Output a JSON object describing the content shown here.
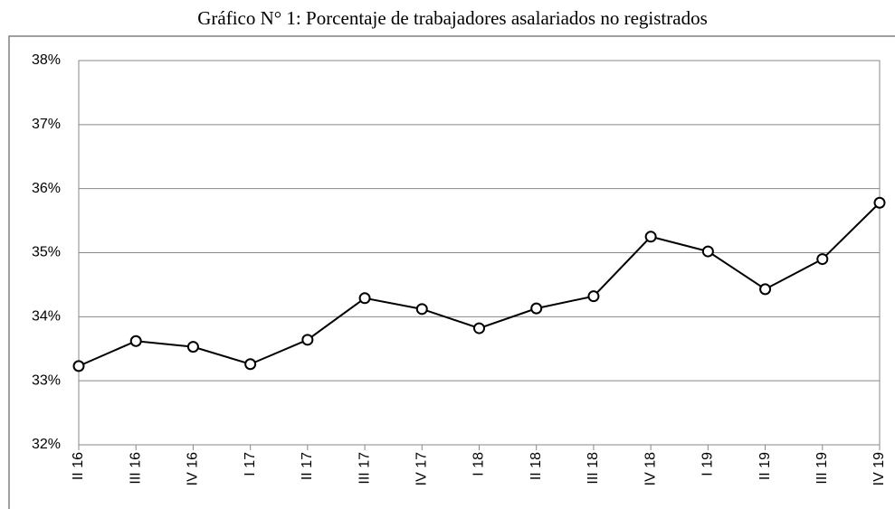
{
  "chart_data": {
    "type": "line",
    "title": "Gráfico N° 1: Porcentaje de trabajadores asalariados no registrados",
    "categories": [
      "II 16",
      "III 16",
      "IV 16",
      "I 17",
      "II 17",
      "III 17",
      "IV 17",
      "I 18",
      "II 18",
      "III 18",
      "IV 18",
      "I 19",
      "II 19",
      "III 19",
      "IV 19"
    ],
    "values": [
      33.23,
      33.62,
      33.53,
      33.26,
      33.64,
      34.29,
      34.12,
      33.82,
      34.13,
      34.32,
      35.25,
      35.02,
      34.43,
      34.9,
      35.78
    ],
    "color": "#000000",
    "ylim": [
      32,
      38
    ],
    "yticks": [
      {
        "value": 32,
        "label": "32%"
      },
      {
        "value": 33,
        "label": "33%"
      },
      {
        "value": 34,
        "label": "34%"
      },
      {
        "value": 35,
        "label": "35%"
      },
      {
        "value": 36,
        "label": "36%"
      },
      {
        "value": 37,
        "label": "37%"
      },
      {
        "value": 38,
        "label": "38%"
      }
    ],
    "grid": true
  }
}
